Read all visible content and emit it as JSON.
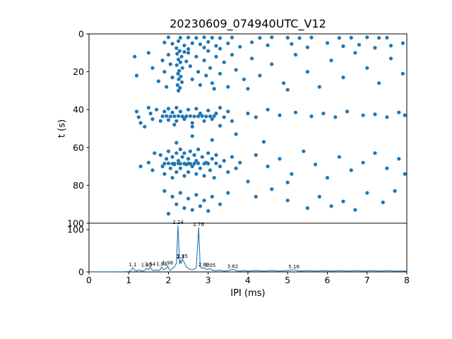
{
  "title": "20230609_074940UTC_V12",
  "axes": {
    "xlabel": "IPI (ms)",
    "ylabel_top": "t (s)",
    "x_ticks": [
      0,
      1,
      2,
      3,
      4,
      5,
      6,
      7,
      8
    ],
    "y_ticks_top": [
      0,
      20,
      40,
      60,
      80,
      100
    ],
    "y_ticks_bottom": [
      0,
      100
    ]
  },
  "colors": {
    "marker": "#1f77b4",
    "line": "#1f77b4",
    "axis": "#000000"
  },
  "chart_data": [
    {
      "type": "scatter",
      "title": "20230609_074940UTC_V12",
      "xlabel": "IPI (ms)",
      "ylabel": "t (s)",
      "xlim": [
        0,
        8
      ],
      "ylim": [
        100,
        0
      ],
      "y_axis_inverted": true,
      "points": [
        [
          2.0,
          1.8
        ],
        [
          2.3,
          2.0
        ],
        [
          2.5,
          1.9
        ],
        [
          2.7,
          2.1
        ],
        [
          2.9,
          1.8
        ],
        [
          3.1,
          2.0
        ],
        [
          3.3,
          2.2
        ],
        [
          3.6,
          1.9
        ],
        [
          4.3,
          2.1
        ],
        [
          4.6,
          1.8
        ],
        [
          5.0,
          2.0
        ],
        [
          5.3,
          2.2
        ],
        [
          5.6,
          1.9
        ],
        [
          6.3,
          2.1
        ],
        [
          6.6,
          2.0
        ],
        [
          7.0,
          1.8
        ],
        [
          7.3,
          2.1
        ],
        [
          7.5,
          2.0
        ],
        [
          1.9,
          4.5
        ],
        [
          2.1,
          5.2
        ],
        [
          2.25,
          3.8
        ],
        [
          2.4,
          6.1
        ],
        [
          2.6,
          4.9
        ],
        [
          2.8,
          5.5
        ],
        [
          3.0,
          4.2
        ],
        [
          3.2,
          6.3
        ],
        [
          3.5,
          5.0
        ],
        [
          3.8,
          6.8
        ],
        [
          4.1,
          4.4
        ],
        [
          4.5,
          6.0
        ],
        [
          5.1,
          5.3
        ],
        [
          5.5,
          7.1
        ],
        [
          6.0,
          4.8
        ],
        [
          6.4,
          6.5
        ],
        [
          6.8,
          5.7
        ],
        [
          7.2,
          7.3
        ],
        [
          7.6,
          6.2
        ],
        [
          7.9,
          4.9
        ],
        [
          2.2,
          7.5
        ],
        [
          2.5,
          8.0
        ],
        [
          2.9,
          7.2
        ],
        [
          3.3,
          7.8
        ],
        [
          2.28,
          9
        ],
        [
          2.22,
          10.5
        ],
        [
          2.33,
          12
        ],
        [
          2.25,
          13.5
        ],
        [
          2.3,
          15
        ],
        [
          2.21,
          16.5
        ],
        [
          2.35,
          18
        ],
        [
          2.27,
          19.5
        ],
        [
          2.24,
          21
        ],
        [
          2.31,
          22.5
        ],
        [
          2.26,
          24
        ],
        [
          2.34,
          25.5
        ],
        [
          2.23,
          27
        ],
        [
          2.29,
          28.5
        ],
        [
          2.25,
          30
        ],
        [
          1.15,
          12
        ],
        [
          1.2,
          22
        ],
        [
          1.5,
          10
        ],
        [
          1.6,
          18
        ],
        [
          1.75,
          25
        ],
        [
          1.85,
          14
        ],
        [
          1.9,
          20
        ],
        [
          1.95,
          28
        ],
        [
          2.0,
          11
        ],
        [
          2.05,
          16
        ],
        [
          2.1,
          23
        ],
        [
          2.5,
          10
        ],
        [
          2.55,
          17
        ],
        [
          2.6,
          24
        ],
        [
          2.7,
          12
        ],
        [
          2.75,
          20
        ],
        [
          2.8,
          27
        ],
        [
          2.9,
          14
        ],
        [
          2.95,
          22
        ],
        [
          3.0,
          9
        ],
        [
          3.05,
          18
        ],
        [
          3.1,
          26
        ],
        [
          3.2,
          12
        ],
        [
          3.3,
          21
        ],
        [
          3.4,
          15
        ],
        [
          3.5,
          28
        ],
        [
          3.6,
          11
        ],
        [
          3.7,
          19
        ],
        [
          3.9,
          24
        ],
        [
          4.1,
          13
        ],
        [
          4.3,
          22
        ],
        [
          4.6,
          16
        ],
        [
          4.9,
          26
        ],
        [
          5.2,
          11
        ],
        [
          5.5,
          20
        ],
        [
          5.8,
          28
        ],
        [
          6.1,
          14
        ],
        [
          6.4,
          23
        ],
        [
          6.7,
          10
        ],
        [
          7.0,
          18
        ],
        [
          7.3,
          26
        ],
        [
          7.6,
          13
        ],
        [
          7.9,
          21
        ],
        [
          2.4,
          9.5
        ],
        [
          2.45,
          14.5
        ],
        [
          3.15,
          29
        ],
        [
          4.0,
          29
        ],
        [
          5.0,
          29.5
        ],
        [
          1.85,
          43.5
        ],
        [
          1.95,
          43.4
        ],
        [
          2.05,
          43.6
        ],
        [
          2.15,
          43.5
        ],
        [
          2.25,
          43.4
        ],
        [
          2.35,
          43.6
        ],
        [
          2.45,
          43.5
        ],
        [
          2.55,
          43.4
        ],
        [
          2.65,
          43.6
        ],
        [
          2.75,
          43.5
        ],
        [
          2.85,
          43.4
        ],
        [
          2.95,
          43.6
        ],
        [
          3.05,
          43.5
        ],
        [
          3.15,
          43.4
        ],
        [
          1.2,
          41
        ],
        [
          1.25,
          44
        ],
        [
          1.3,
          47
        ],
        [
          1.5,
          39
        ],
        [
          1.55,
          42
        ],
        [
          1.6,
          45
        ],
        [
          1.7,
          40
        ],
        [
          1.8,
          46
        ],
        [
          1.9,
          41
        ],
        [
          2.0,
          39.5
        ],
        [
          2.0,
          45.5
        ],
        [
          2.1,
          41.5
        ],
        [
          2.2,
          39
        ],
        [
          2.2,
          46
        ],
        [
          2.3,
          41
        ],
        [
          2.4,
          45
        ],
        [
          2.5,
          40
        ],
        [
          2.6,
          47
        ],
        [
          2.7,
          39.5
        ],
        [
          2.8,
          42
        ],
        [
          2.9,
          46
        ],
        [
          3.0,
          40.5
        ],
        [
          3.1,
          45
        ],
        [
          3.2,
          42
        ],
        [
          3.3,
          39
        ],
        [
          3.4,
          44
        ],
        [
          3.5,
          41
        ],
        [
          3.6,
          46
        ],
        [
          4.0,
          42
        ],
        [
          4.2,
          44
        ],
        [
          4.5,
          40
        ],
        [
          4.8,
          43
        ],
        [
          5.2,
          41.5
        ],
        [
          5.6,
          43.5
        ],
        [
          5.9,
          42
        ],
        [
          6.2,
          44
        ],
        [
          6.5,
          41
        ],
        [
          6.9,
          43
        ],
        [
          7.2,
          42.5
        ],
        [
          7.5,
          44
        ],
        [
          7.8,
          41.5
        ],
        [
          7.95,
          43
        ],
        [
          2.15,
          48
        ],
        [
          2.6,
          49
        ],
        [
          3.3,
          48.5
        ],
        [
          1.4,
          49
        ],
        [
          2.6,
          54
        ],
        [
          3.1,
          56
        ],
        [
          3.7,
          53
        ],
        [
          4.4,
          57
        ],
        [
          2.2,
          57.5
        ],
        [
          1.9,
          68.5
        ],
        [
          2.0,
          68.4
        ],
        [
          2.1,
          68.6
        ],
        [
          2.15,
          68.5
        ],
        [
          2.25,
          68.4
        ],
        [
          2.3,
          68.6
        ],
        [
          2.4,
          68.5
        ],
        [
          2.5,
          68.4
        ],
        [
          2.55,
          68.6
        ],
        [
          2.65,
          68.5
        ],
        [
          2.75,
          68.4
        ],
        [
          2.9,
          68.6
        ],
        [
          3.0,
          68.5
        ],
        [
          3.2,
          68.4
        ],
        [
          1.8,
          64
        ],
        [
          1.85,
          70
        ],
        [
          1.9,
          74
        ],
        [
          1.95,
          66
        ],
        [
          2.0,
          62
        ],
        [
          2.05,
          71
        ],
        [
          2.1,
          65
        ],
        [
          2.1,
          76
        ],
        [
          2.15,
          69
        ],
        [
          2.2,
          63
        ],
        [
          2.2,
          73
        ],
        [
          2.25,
          67
        ],
        [
          2.3,
          61
        ],
        [
          2.3,
          71
        ],
        [
          2.35,
          65
        ],
        [
          2.4,
          75
        ],
        [
          2.4,
          63
        ],
        [
          2.45,
          69
        ],
        [
          2.5,
          66
        ],
        [
          2.5,
          73
        ],
        [
          2.55,
          62
        ],
        [
          2.6,
          70
        ],
        [
          2.65,
          64
        ],
        [
          2.7,
          74
        ],
        [
          2.7,
          67
        ],
        [
          2.75,
          61
        ],
        [
          2.8,
          71
        ],
        [
          2.85,
          65
        ],
        [
          2.9,
          75
        ],
        [
          2.95,
          68
        ],
        [
          3.0,
          63
        ],
        [
          3.05,
          72
        ],
        [
          3.1,
          66
        ],
        [
          3.15,
          76
        ],
        [
          3.2,
          64
        ],
        [
          3.3,
          70
        ],
        [
          3.4,
          67
        ],
        [
          3.5,
          73
        ],
        [
          3.6,
          65
        ],
        [
          3.7,
          71
        ],
        [
          3.8,
          68
        ],
        [
          4.2,
          64
        ],
        [
          4.5,
          70
        ],
        [
          4.8,
          66
        ],
        [
          5.1,
          74
        ],
        [
          5.4,
          62
        ],
        [
          5.7,
          69
        ],
        [
          6.0,
          76
        ],
        [
          6.3,
          65
        ],
        [
          6.6,
          72
        ],
        [
          6.9,
          68
        ],
        [
          7.2,
          63
        ],
        [
          7.5,
          71
        ],
        [
          7.8,
          66
        ],
        [
          7.95,
          74
        ],
        [
          4.0,
          78
        ],
        [
          5.0,
          78.5
        ],
        [
          1.5,
          68
        ],
        [
          1.6,
          72
        ],
        [
          1.65,
          63
        ],
        [
          1.3,
          70
        ],
        [
          1.9,
          83
        ],
        [
          2.1,
          86
        ],
        [
          2.2,
          90
        ],
        [
          2.3,
          84
        ],
        [
          2.4,
          92
        ],
        [
          2.5,
          87
        ],
        [
          2.6,
          93
        ],
        [
          2.7,
          85
        ],
        [
          2.8,
          91
        ],
        [
          2.9,
          88
        ],
        [
          3.0,
          93.5
        ],
        [
          3.1,
          86
        ],
        [
          3.3,
          90
        ],
        [
          3.5,
          84
        ],
        [
          2.0,
          95
        ],
        [
          4.6,
          82
        ],
        [
          5.0,
          88
        ],
        [
          5.5,
          92
        ],
        [
          5.8,
          86
        ],
        [
          6.1,
          91
        ],
        [
          6.4,
          88.5
        ],
        [
          6.7,
          93
        ],
        [
          7.0,
          84
        ],
        [
          7.4,
          89
        ],
        [
          7.7,
          83
        ],
        [
          4.2,
          86
        ]
      ]
    },
    {
      "type": "line",
      "xlabel": "IPI (ms)",
      "ylabel": "",
      "xlim": [
        0,
        8
      ],
      "ylim": [
        0,
        115
      ],
      "points": [
        [
          0,
          0.3
        ],
        [
          0.5,
          0.3
        ],
        [
          0.9,
          0.5
        ],
        [
          1.0,
          1
        ],
        [
          1.05,
          3
        ],
        [
          1.1,
          10
        ],
        [
          1.15,
          4
        ],
        [
          1.2,
          2
        ],
        [
          1.25,
          5
        ],
        [
          1.3,
          3
        ],
        [
          1.35,
          2
        ],
        [
          1.4,
          4
        ],
        [
          1.45,
          9
        ],
        [
          1.5,
          5
        ],
        [
          1.54,
          11
        ],
        [
          1.6,
          4
        ],
        [
          1.65,
          3
        ],
        [
          1.7,
          5
        ],
        [
          1.75,
          3
        ],
        [
          1.8,
          6
        ],
        [
          1.83,
          12
        ],
        [
          1.88,
          5
        ],
        [
          1.92,
          7
        ],
        [
          1.95,
          8
        ],
        [
          1.98,
          14
        ],
        [
          2.02,
          6
        ],
        [
          2.05,
          4
        ],
        [
          2.1,
          8
        ],
        [
          2.15,
          12
        ],
        [
          2.2,
          20
        ],
        [
          2.24,
          110
        ],
        [
          2.28,
          18
        ],
        [
          2.3,
          28
        ],
        [
          2.32,
          20
        ],
        [
          2.35,
          30
        ],
        [
          2.4,
          22
        ],
        [
          2.45,
          12
        ],
        [
          2.5,
          8
        ],
        [
          2.55,
          6
        ],
        [
          2.6,
          5
        ],
        [
          2.65,
          7
        ],
        [
          2.7,
          10
        ],
        [
          2.76,
          105
        ],
        [
          2.8,
          12
        ],
        [
          2.85,
          8
        ],
        [
          2.89,
          10
        ],
        [
          2.95,
          6
        ],
        [
          3.0,
          7
        ],
        [
          3.05,
          8
        ],
        [
          3.1,
          4
        ],
        [
          3.2,
          3
        ],
        [
          3.3,
          4
        ],
        [
          3.4,
          2
        ],
        [
          3.5,
          3
        ],
        [
          3.62,
          6
        ],
        [
          3.7,
          3
        ],
        [
          3.8,
          2
        ],
        [
          3.9,
          3
        ],
        [
          4.0,
          2
        ],
        [
          4.2,
          3
        ],
        [
          4.4,
          2
        ],
        [
          4.6,
          3
        ],
        [
          4.8,
          2
        ],
        [
          5.0,
          3
        ],
        [
          5.16,
          5
        ],
        [
          5.3,
          2
        ],
        [
          5.5,
          3
        ],
        [
          5.7,
          2
        ],
        [
          5.9,
          3
        ],
        [
          6.1,
          2
        ],
        [
          6.3,
          3
        ],
        [
          6.5,
          2
        ],
        [
          6.7,
          3
        ],
        [
          6.9,
          2
        ],
        [
          7.1,
          3
        ],
        [
          7.3,
          2
        ],
        [
          7.5,
          3
        ],
        [
          7.7,
          2
        ],
        [
          7.9,
          2
        ],
        [
          8.0,
          2
        ]
      ],
      "annotations": [
        {
          "x": 1.1,
          "y": 10,
          "label": "1.1"
        },
        {
          "x": 1.45,
          "y": 9,
          "label": "1.45"
        },
        {
          "x": 1.54,
          "y": 11,
          "label": "1.54"
        },
        {
          "x": 1.83,
          "y": 12,
          "label": "1.83"
        },
        {
          "x": 1.98,
          "y": 14,
          "label": "1.98"
        },
        {
          "x": 2.24,
          "y": 110,
          "label": "2.24"
        },
        {
          "x": 2.3,
          "y": 28,
          "label": "2.3"
        },
        {
          "x": 2.35,
          "y": 30,
          "label": "2.35"
        },
        {
          "x": 2.76,
          "y": 105,
          "label": "2.76"
        },
        {
          "x": 2.89,
          "y": 10,
          "label": "2.89"
        },
        {
          "x": 3.05,
          "y": 8,
          "label": "3.05"
        },
        {
          "x": 3.62,
          "y": 6,
          "label": "3.62"
        },
        {
          "x": 5.16,
          "y": 5,
          "label": "5.16"
        }
      ]
    }
  ]
}
